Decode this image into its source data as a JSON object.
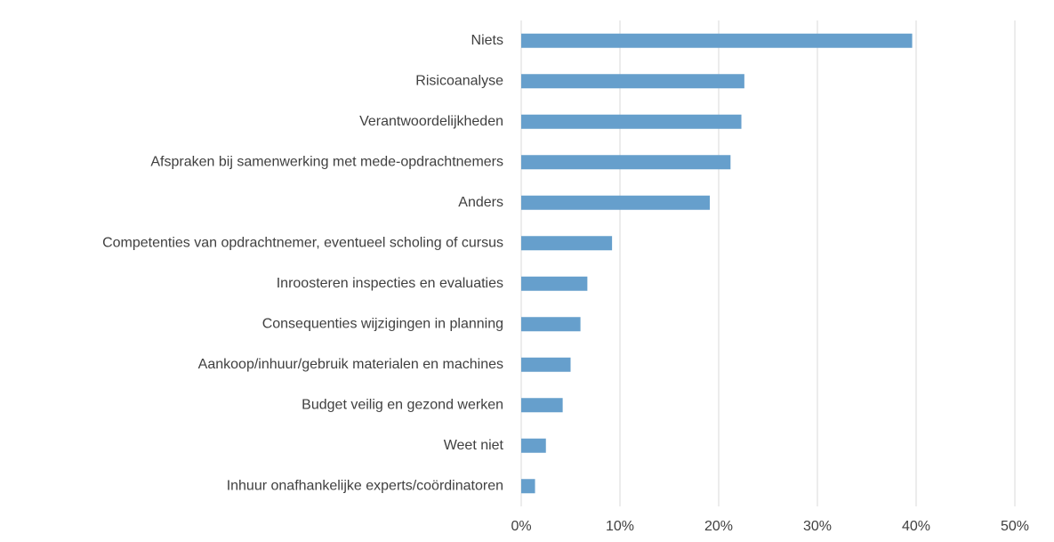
{
  "chart_data": {
    "type": "bar",
    "orientation": "horizontal",
    "categories": [
      "Niets",
      "Risicoanalyse",
      "Verantwoordelijkheden",
      "Afspraken bij samenwerking met mede-opdrachtnemers",
      "Anders",
      "Competenties van opdrachtnemer, eventueel scholing of cursus",
      "Inroosteren inspecties en evaluaties",
      "Consequenties wijzigingen in planning",
      "Aankoop/inhuur/gebruik materialen en machines",
      "Budget veilig en gezond werken",
      "Weet niet",
      "Inhuur onafhankelijke experts/coördinatoren"
    ],
    "values": [
      39.6,
      22.6,
      22.3,
      21.2,
      19.1,
      9.2,
      6.7,
      6.0,
      5.0,
      4.2,
      2.5,
      1.4
    ],
    "color": "#669fcc",
    "xlim": [
      0,
      50
    ],
    "xticks": [
      {
        "value": 0,
        "label": "0%"
      },
      {
        "value": 10,
        "label": "10%"
      },
      {
        "value": 20,
        "label": "20%"
      },
      {
        "value": 30,
        "label": "30%"
      },
      {
        "value": 40,
        "label": "40%"
      },
      {
        "value": 50,
        "label": "50%"
      }
    ],
    "grid": true
  }
}
